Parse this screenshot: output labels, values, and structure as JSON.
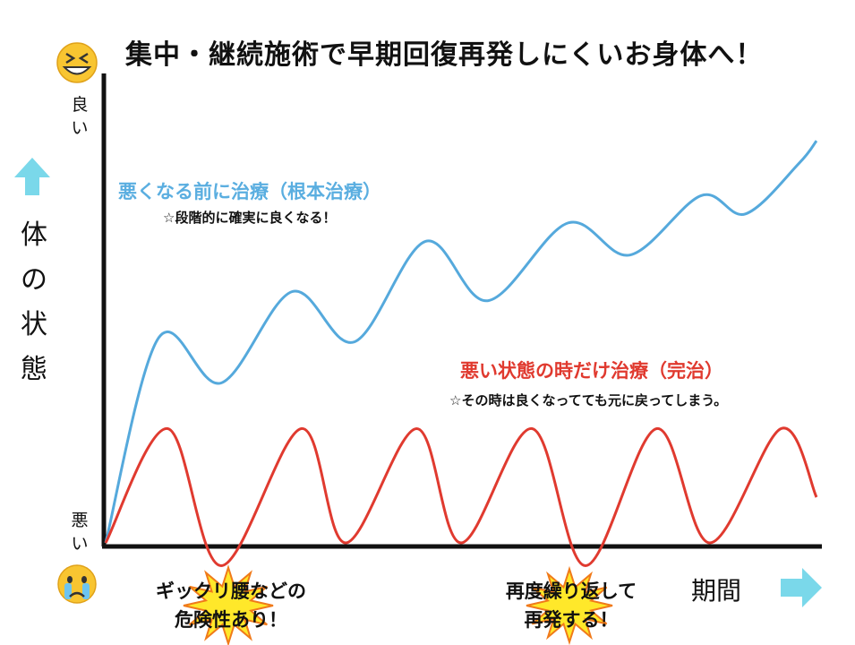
{
  "title": "集中・継続施術で早期回復再発しにくいお身体へ！",
  "y_axis": {
    "label": "体の状態",
    "top_tick": "良い",
    "bottom_tick": "悪い"
  },
  "x_axis": {
    "label": "期間"
  },
  "icons": {
    "top": "grinning-squint-emoji-icon",
    "bottom": "crying-emoji-icon",
    "up_arrow": "cyan-up-arrow-icon",
    "right_arrow": "cyan-right-arrow-icon"
  },
  "chart_data": {
    "type": "line",
    "title": "集中・継続施術で早期回復再発しにくいお身体へ！",
    "xlabel": "期間",
    "ylabel": "体の状態",
    "y_tick_labels": [
      "良い",
      "悪い"
    ],
    "xlim": [
      0,
      8
    ],
    "ylim": [
      0,
      10
    ],
    "series": [
      {
        "name": "悪くなる前に治療（根本治療）",
        "note": "☆段階的に確実に良くなる！",
        "color": "#55a9dc",
        "x": [
          0,
          0.6,
          1.3,
          2.1,
          2.8,
          3.6,
          4.3,
          5.2,
          5.9,
          6.7,
          7.2,
          7.8,
          8.0
        ],
        "y": [
          0,
          4.5,
          3.5,
          5.5,
          4.4,
          6.6,
          5.3,
          7.0,
          6.3,
          7.6,
          7.2,
          8.3,
          8.8
        ]
      },
      {
        "name": "悪い状態の時だけ治療（完治）",
        "note": "☆その時は良くなってても元に戻ってしまう。",
        "color": "#e03a2f",
        "x": [
          0,
          0.7,
          1.3,
          2.2,
          2.7,
          3.5,
          4.0,
          4.8,
          5.4,
          6.2,
          6.8,
          7.6,
          8.0
        ],
        "y": [
          0,
          2.5,
          -0.5,
          2.5,
          0,
          2.5,
          0,
          2.5,
          -0.5,
          2.5,
          0,
          2.5,
          1.0
        ]
      }
    ],
    "annotations": [
      {
        "text_lines": [
          "ギックリ腰などの",
          "危険性あり！"
        ]
      },
      {
        "text_lines": [
          "再度繰り返して",
          "再発する！"
        ]
      }
    ]
  }
}
